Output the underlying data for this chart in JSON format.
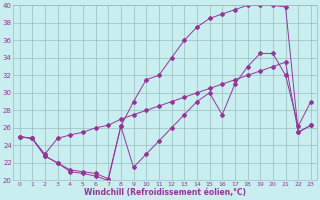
{
  "title": "",
  "xlabel": "Windchill (Refroidissement éolien,°C)",
  "ylabel": "",
  "xlim": [
    -0.5,
    23.5
  ],
  "ylim": [
    20,
    40
  ],
  "yticks": [
    20,
    22,
    24,
    26,
    28,
    30,
    32,
    34,
    36,
    38,
    40
  ],
  "xticks": [
    0,
    1,
    2,
    3,
    4,
    5,
    6,
    7,
    8,
    9,
    10,
    11,
    12,
    13,
    14,
    15,
    16,
    17,
    18,
    19,
    20,
    21,
    22,
    23
  ],
  "bg_color": "#c8eef0",
  "grid_color": "#9bbcbf",
  "line_color": "#993399",
  "line1_x": [
    0,
    1,
    2,
    3,
    4,
    5,
    6,
    7,
    8,
    9,
    10,
    11,
    12,
    13,
    14,
    15,
    16,
    17,
    18,
    19,
    20,
    21,
    22,
    23
  ],
  "line1_y": [
    25.0,
    24.8,
    23.0,
    24.8,
    25.2,
    25.5,
    26.0,
    26.3,
    27.0,
    27.5,
    28.0,
    28.5,
    29.0,
    29.5,
    30.0,
    30.5,
    31.0,
    31.5,
    32.0,
    32.5,
    33.0,
    33.5,
    25.5,
    26.3
  ],
  "line2_x": [
    0,
    1,
    2,
    3,
    4,
    5,
    6,
    7,
    8,
    9,
    10,
    11,
    12,
    13,
    14,
    15,
    16,
    17,
    18,
    19,
    20,
    21,
    22,
    23
  ],
  "line2_y": [
    25.0,
    24.8,
    22.8,
    22.0,
    21.0,
    20.8,
    20.5,
    20.0,
    26.2,
    29.0,
    31.5,
    32.0,
    34.0,
    36.0,
    37.5,
    38.5,
    39.0,
    39.5,
    40.0,
    40.0,
    40.0,
    39.8,
    25.5,
    26.3
  ],
  "line3_x": [
    0,
    1,
    2,
    3,
    4,
    5,
    6,
    7,
    8,
    9,
    10,
    11,
    12,
    13,
    14,
    15,
    16,
    17,
    18,
    19,
    20,
    21,
    22,
    23
  ],
  "line3_y": [
    25.0,
    24.8,
    22.8,
    22.0,
    21.2,
    21.0,
    20.8,
    20.2,
    26.2,
    21.5,
    23.0,
    24.5,
    26.0,
    27.5,
    29.0,
    30.0,
    27.5,
    31.0,
    33.0,
    34.5,
    34.5,
    32.0,
    26.2,
    29.0
  ]
}
